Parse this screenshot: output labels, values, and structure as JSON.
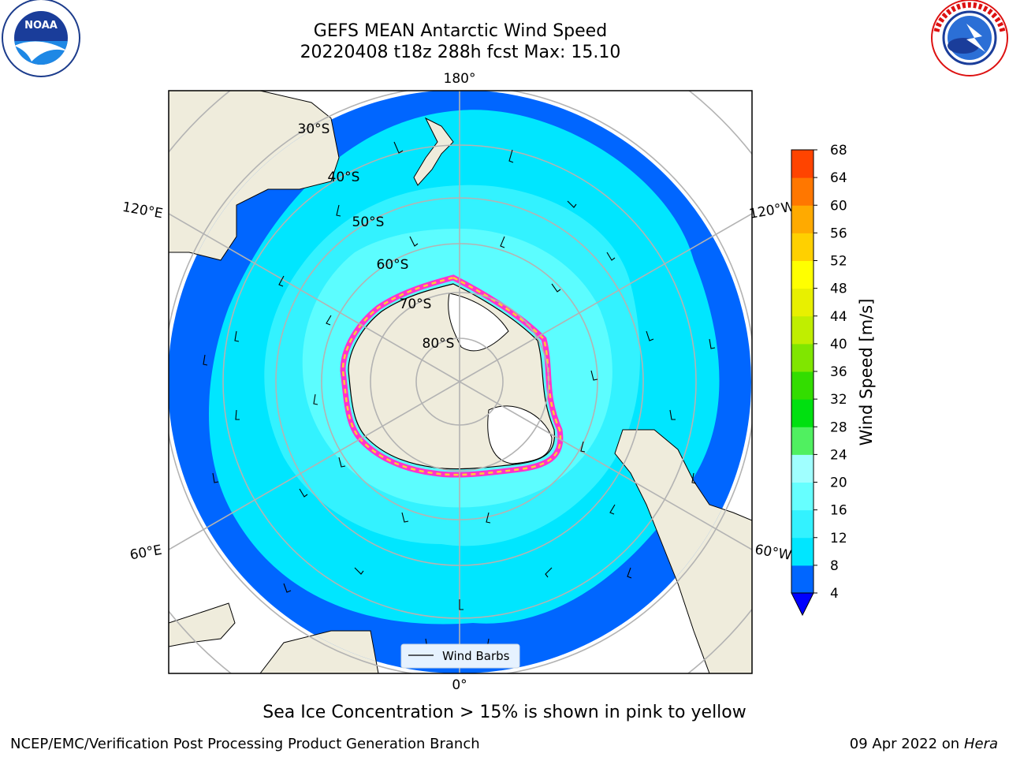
{
  "title": {
    "line1": "GEFS MEAN Antarctic Wind Speed",
    "line2": "20220408 t18z 288h fcst   Max: 15.10"
  },
  "map_labels": {
    "lon": [
      "180°",
      "120°E",
      "120°W",
      "60°E",
      "60°W",
      "0°"
    ],
    "lat": [
      "30°S",
      "40°S",
      "50°S",
      "60°S",
      "70°S",
      "80°S"
    ]
  },
  "legend": {
    "wind_barbs": "Wind Barbs"
  },
  "colorbar": {
    "label": "Wind Speed [m/s]",
    "ticks": [
      "4",
      "8",
      "12",
      "16",
      "20",
      "24",
      "28",
      "32",
      "36",
      "40",
      "44",
      "48",
      "52",
      "56",
      "60",
      "64",
      "68"
    ],
    "colors": [
      "#0066ff",
      "#00e6ff",
      "#33f2ff",
      "#66ffff",
      "#a0ffff",
      "#50f060",
      "#00e010",
      "#33dd00",
      "#80e600",
      "#c0ee00",
      "#e8f000",
      "#ffff00",
      "#ffd000",
      "#ffaa00",
      "#ff7700",
      "#ff4400",
      "#ff0000"
    ],
    "under_color": "#0000ff"
  },
  "caption": "Sea Ice Concentration > 15% is shown in pink to yellow",
  "footer": {
    "left": "NCEP/EMC/Verification Post Processing Product Generation Branch",
    "right_date": "09 Apr 2022 on ",
    "right_host": "Hera"
  },
  "logos": {
    "noaa": "NOAA",
    "nws": "NATIONAL WEATHER SERVICE"
  }
}
